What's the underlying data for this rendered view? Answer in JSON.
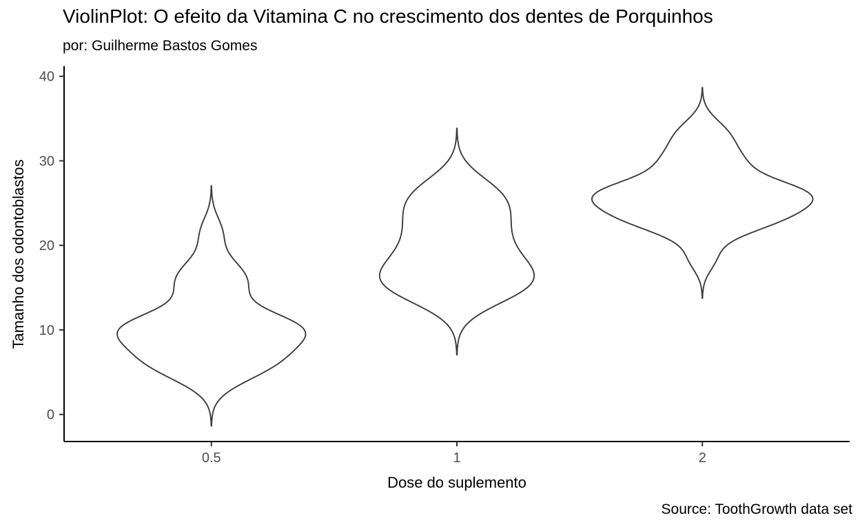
{
  "chart_data": {
    "type": "violin",
    "title": "ViolinPlot: O efeito da Vitamina C no crescimento dos dentes de Porquinhos",
    "subtitle": "por: Guilherme Bastos Gomes",
    "xlabel": "Dose do suplemento",
    "ylabel": "Tamanho dos odontoblastos",
    "caption": "Source: ToothGrowth data set",
    "categories": [
      "0.5",
      "1",
      "2"
    ],
    "y_ticks": [
      0,
      10,
      20,
      30,
      40
    ],
    "ylim": [
      -3.2,
      41.2
    ],
    "grid": false,
    "legend": "none",
    "kde": {
      "bandwidth_rule": "nrd0",
      "cut_bandwidths": 3,
      "trim": false,
      "scale": "area",
      "violin_width": 0.9
    },
    "series": [
      {
        "category": "0.5",
        "values": [
          4.2,
          11.5,
          7.3,
          5.8,
          6.4,
          10.0,
          11.2,
          11.2,
          5.2,
          7.0,
          15.2,
          21.5,
          17.6,
          9.7,
          14.5,
          10.0,
          8.2,
          9.4,
          16.5,
          9.7
        ]
      },
      {
        "category": "1",
        "values": [
          16.5,
          16.5,
          15.2,
          17.3,
          22.5,
          17.3,
          13.6,
          14.5,
          18.8,
          15.5,
          19.7,
          23.3,
          23.6,
          26.4,
          20.0,
          25.2,
          25.8,
          21.2,
          14.5,
          27.3
        ]
      },
      {
        "category": "2",
        "values": [
          23.6,
          18.5,
          33.9,
          25.5,
          26.4,
          32.5,
          26.7,
          21.5,
          23.3,
          29.5,
          25.5,
          26.4,
          22.4,
          24.5,
          24.8,
          30.9,
          26.4,
          27.3,
          29.4,
          23.0
        ]
      }
    ]
  },
  "colors": {
    "background": "#FFFFFF",
    "violin_stroke": "#3C3C3C",
    "violin_fill": "#FFFFFF",
    "axis_line": "#000000",
    "tick_mark": "#333333",
    "tick_label": "#4D4D4D",
    "text": "#000000"
  }
}
